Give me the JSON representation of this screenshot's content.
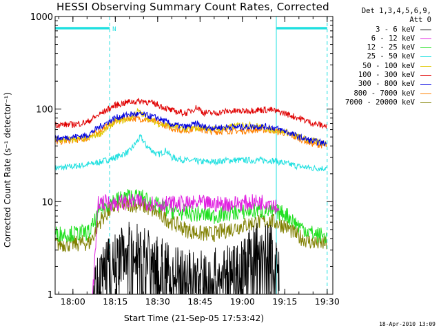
{
  "title": "HESSI Observing Summary Count Rates, Corrected",
  "legend": {
    "header_line1": "Det 1,3,4,5,6,9,",
    "header_line2": "Att 0",
    "entries": [
      {
        "label": "3 - 6 keV",
        "color": "#000000"
      },
      {
        "label": "6 - 12 keV",
        "color": "#e020e0"
      },
      {
        "label": "12 - 25 keV",
        "color": "#20e020"
      },
      {
        "label": "25 - 50 keV",
        "color": "#20e0e0"
      },
      {
        "label": "50 - 100 keV",
        "color": "#e0c800"
      },
      {
        "label": "100 - 300 keV",
        "color": "#e00000"
      },
      {
        "label": "300 - 800 keV",
        "color": "#0000e0"
      },
      {
        "label": "800 - 7000 keV",
        "color": "#ff8000"
      },
      {
        "label": "7000 - 20000 keV",
        "color": "#808000"
      }
    ]
  },
  "stamp": "18-Apr-2010 13:09",
  "chart_data": {
    "type": "line",
    "title": "HESSI Observing Summary Count Rates, Corrected",
    "xlabel": "Start Time (21-Sep-05 17:53:42)",
    "ylabel": "Corrected Count Rate (s⁻¹ detector⁻¹)",
    "y_scale": "log",
    "ylim": [
      1,
      1000
    ],
    "xlim": [
      "17:53:42",
      "19:32:00"
    ],
    "x_ticks": [
      "18:00",
      "18:15",
      "18:30",
      "18:45",
      "19:00",
      "19:15",
      "19:30"
    ],
    "y_ticks": [
      "1",
      "10",
      "100",
      "1000"
    ],
    "annotations": {
      "night_bars": [
        [
          "17:53:42",
          "18:13:00"
        ],
        [
          "19:12:00",
          "19:30:00"
        ]
      ],
      "night_marker": "N",
      "dashed_lines": [
        "18:13:00",
        "19:30:00"
      ],
      "solid_lines": [
        "17:53:42",
        "19:12:00"
      ]
    },
    "series": [
      {
        "name": "3 - 6 keV",
        "color": "#000000",
        "x": [
          "18:07",
          "18:09",
          "18:12",
          "18:15",
          "18:20",
          "18:25",
          "18:30",
          "18:35",
          "18:40",
          "18:45",
          "18:50",
          "18:55",
          "19:00",
          "19:05",
          "19:10",
          "19:13"
        ],
        "values": [
          1.0,
          1.5,
          2.2,
          2.3,
          3.2,
          3.0,
          2.2,
          1.7,
          1.6,
          1.6,
          1.6,
          1.7,
          2.2,
          3.0,
          3.2,
          1.5
        ]
      },
      {
        "name": "6 - 12 keV",
        "color": "#e020e0",
        "x": [
          "18:07",
          "18:09",
          "18:12",
          "18:15",
          "18:20",
          "18:25",
          "18:30",
          "18:35",
          "18:40",
          "18:45",
          "18:50",
          "18:55",
          "19:00",
          "19:05",
          "19:10",
          "19:13"
        ],
        "values": [
          1.0,
          9.8,
          9.8,
          9.6,
          10.0,
          9.9,
          9.5,
          9.5,
          9.4,
          9.6,
          9.4,
          9.5,
          9.6,
          9.9,
          10.0,
          8.5
        ]
      },
      {
        "name": "12 - 25 keV",
        "color": "#20e020",
        "x": [
          "17:53:42",
          "18:00",
          "18:06",
          "18:10",
          "18:15",
          "18:20",
          "18:25",
          "18:30",
          "18:35",
          "18:40",
          "18:45",
          "18:50",
          "18:55",
          "19:00",
          "19:05",
          "19:10",
          "19:15",
          "19:20",
          "19:25",
          "19:30"
        ],
        "values": [
          4.5,
          4.5,
          4.7,
          8.5,
          10.5,
          11.5,
          11.0,
          9.0,
          8.0,
          7.5,
          7.3,
          7.0,
          7.5,
          7.8,
          8.0,
          7.8,
          7.5,
          5.5,
          4.5,
          4.2
        ]
      },
      {
        "name": "25 - 50 keV",
        "color": "#20e0e0",
        "x": [
          "17:53:42",
          "18:00",
          "18:05",
          "18:10",
          "18:15",
          "18:20",
          "18:24",
          "18:26",
          "18:30",
          "18:33",
          "18:35",
          "18:40",
          "18:45",
          "18:50",
          "18:55",
          "19:00",
          "19:05",
          "19:10",
          "19:15",
          "19:20",
          "19:25",
          "19:30"
        ],
        "values": [
          23,
          24,
          25,
          27,
          30,
          35,
          50,
          40,
          32,
          36,
          30,
          28,
          27,
          27,
          28,
          28,
          28,
          28,
          26,
          24,
          23,
          23
        ]
      },
      {
        "name": "50 - 100 keV",
        "color": "#e0c800",
        "x": [
          "17:53:42",
          "18:00",
          "18:05",
          "18:10",
          "18:15",
          "18:20",
          "18:23",
          "18:25",
          "18:28",
          "18:30",
          "18:35",
          "18:40",
          "18:45",
          "18:50",
          "18:55",
          "19:00",
          "19:05",
          "19:10",
          "19:15",
          "19:20",
          "19:25",
          "19:30"
        ],
        "values": [
          46,
          47,
          48,
          55,
          73,
          78,
          95,
          85,
          75,
          70,
          65,
          61,
          63,
          61,
          63,
          68,
          66,
          60,
          57,
          50,
          45,
          43
        ]
      },
      {
        "name": "100 - 300 keV",
        "color": "#e00000",
        "x": [
          "17:53:42",
          "18:00",
          "18:05",
          "18:10",
          "18:15",
          "18:20",
          "18:25",
          "18:30",
          "18:35",
          "18:40",
          "18:44",
          "18:46",
          "18:50",
          "18:55",
          "19:00",
          "19:05",
          "19:10",
          "19:15",
          "19:20",
          "19:25",
          "19:30"
        ],
        "values": [
          68,
          68,
          72,
          90,
          110,
          120,
          122,
          112,
          96,
          90,
          105,
          92,
          90,
          95,
          95,
          98,
          98,
          90,
          80,
          70,
          65
        ]
      },
      {
        "name": "300 - 800 keV",
        "color": "#0000e0",
        "x": [
          "17:53:42",
          "18:00",
          "18:05",
          "18:10",
          "18:15",
          "18:20",
          "18:25",
          "18:30",
          "18:35",
          "18:40",
          "18:44",
          "18:46",
          "18:50",
          "18:55",
          "19:00",
          "19:05",
          "19:10",
          "19:15",
          "19:20",
          "19:25",
          "19:30"
        ],
        "values": [
          48,
          50,
          52,
          66,
          80,
          88,
          87,
          80,
          68,
          64,
          70,
          64,
          63,
          64,
          64,
          65,
          64,
          58,
          50,
          45,
          42
        ]
      },
      {
        "name": "800 - 7000 keV",
        "color": "#ff8000",
        "x": [
          "17:53:42",
          "18:00",
          "18:05",
          "18:10",
          "18:15",
          "18:20",
          "18:25",
          "18:30",
          "18:35",
          "18:40",
          "18:44",
          "18:46",
          "18:50",
          "18:55",
          "19:00",
          "19:05",
          "19:10",
          "19:15",
          "19:20",
          "19:25",
          "19:30"
        ],
        "values": [
          44,
          46,
          48,
          60,
          74,
          80,
          78,
          72,
          62,
          58,
          64,
          58,
          57,
          58,
          58,
          60,
          59,
          55,
          48,
          42,
          40
        ]
      },
      {
        "name": "7000 - 20000 keV",
        "color": "#808000",
        "x": [
          "17:53:42",
          "18:00",
          "18:06",
          "18:10",
          "18:15",
          "18:20",
          "18:25",
          "18:30",
          "18:35",
          "18:40",
          "18:45",
          "18:50",
          "18:55",
          "19:00",
          "19:05",
          "19:10",
          "19:15",
          "19:20",
          "19:25",
          "19:30"
        ],
        "values": [
          3.5,
          3.5,
          3.6,
          6.5,
          9.0,
          9.5,
          9.0,
          7.5,
          6.0,
          5.0,
          4.5,
          4.5,
          5.0,
          5.5,
          6.0,
          6.2,
          5.5,
          4.2,
          3.6,
          3.5
        ]
      }
    ]
  }
}
